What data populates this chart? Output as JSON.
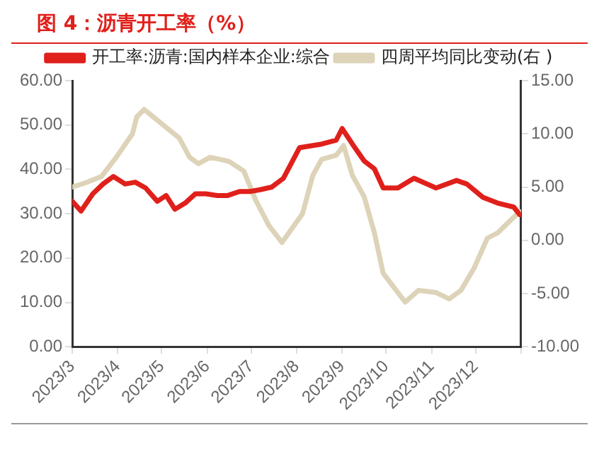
{
  "chart_data": {
    "type": "line",
    "title": "图 4：沥青开工率（%）",
    "series": [
      {
        "name": "开工率:沥青:国内样本企业:综合",
        "color": "#e0201b",
        "x": [
          "2023-03-01",
          "2023-03-07",
          "2023-03-15",
          "2023-03-22",
          "2023-03-29",
          "2023-04-06",
          "2023-04-13",
          "2023-04-20",
          "2023-04-28",
          "2023-05-04",
          "2023-05-10",
          "2023-05-17",
          "2023-05-24",
          "2023-05-31",
          "2023-06-08",
          "2023-06-15",
          "2023-06-23",
          "2023-06-30",
          "2023-07-07",
          "2023-07-15",
          "2023-07-23",
          "2023-08-03",
          "2023-08-18",
          "2023-08-28",
          "2023-09-01",
          "2023-09-08",
          "2023-09-16",
          "2023-09-23",
          "2023-09-29",
          "2023-10-09",
          "2023-10-20",
          "2023-11-04",
          "2023-11-18",
          "2023-11-25",
          "2023-12-06",
          "2023-12-16",
          "2023-12-27",
          "2023-12-31"
        ],
        "values": [
          32.8,
          30.6,
          34.5,
          36.7,
          38.4,
          36.7,
          37.1,
          35.8,
          32.8,
          34.1,
          31,
          32.4,
          34.5,
          34.5,
          34.1,
          34.1,
          35,
          35,
          35.4,
          36,
          38,
          44.9,
          45.7,
          46.6,
          49.2,
          45.7,
          41.9,
          40.1,
          35.8,
          35.8,
          38,
          35.8,
          37.5,
          36.7,
          33.7,
          32.4,
          31.5,
          29.8
        ]
      },
      {
        "name": "四周平均同比变动(右 )",
        "color": "#ddd3b8",
        "axis": "y2",
        "x": [
          "2023-03-01",
          "2023-03-10",
          "2023-03-21",
          "2023-03-31",
          "2023-04-11",
          "2023-04-14",
          "2023-04-19",
          "2023-04-27",
          "2023-05-05",
          "2023-05-13",
          "2023-05-20",
          "2023-05-26",
          "2023-06-03",
          "2023-06-10",
          "2023-06-16",
          "2023-06-26",
          "2023-07-04",
          "2023-07-13",
          "2023-07-22",
          "2023-08-05",
          "2023-08-12",
          "2023-08-18",
          "2023-08-28",
          "2023-09-02",
          "2023-09-08",
          "2023-09-16",
          "2023-09-23",
          "2023-09-29",
          "2023-10-09",
          "2023-10-14",
          "2023-10-23",
          "2023-11-04",
          "2023-11-13",
          "2023-11-21",
          "2023-11-30",
          "2023-12-09",
          "2023-12-16",
          "2023-12-31"
        ],
        "values": [
          5.0,
          5.4,
          6.0,
          7.8,
          10.0,
          11.6,
          12.3,
          11.4,
          10.5,
          9.6,
          7.8,
          7.2,
          7.8,
          7.6,
          7.4,
          6.5,
          3.8,
          1.4,
          -0.2,
          2.5,
          6.1,
          7.6,
          8.0,
          8.9,
          6.1,
          4.1,
          0.7,
          -3.1,
          -4.9,
          -5.8,
          -4.7,
          -4.9,
          -5.5,
          -4.7,
          -2.6,
          0.2,
          0.7,
          2.7
        ]
      }
    ],
    "xlim": [
      "2023-03-01",
      "2024-01-01"
    ],
    "xticks": [
      {
        "value": "2023-03-01",
        "label": "2023/3"
      },
      {
        "value": "2023-04-01",
        "label": "2023/4"
      },
      {
        "value": "2023-05-01",
        "label": "2023/5"
      },
      {
        "value": "2023-06-01",
        "label": "2023/6"
      },
      {
        "value": "2023-07-01",
        "label": "2023/7"
      },
      {
        "value": "2023-08-01",
        "label": "2023/8"
      },
      {
        "value": "2023-09-01",
        "label": "2023/9"
      },
      {
        "value": "2023-10-01",
        "label": "2023/10"
      },
      {
        "value": "2023-11-01",
        "label": "2023/11"
      },
      {
        "value": "2023-12-01",
        "label": "2023/12"
      },
      {
        "value": "2024-01-01",
        "label": null
      }
    ],
    "ylim": [
      0,
      60
    ],
    "yticks": [
      {
        "value": 0,
        "label": "0.00"
      },
      {
        "value": 10,
        "label": "10.00"
      },
      {
        "value": 20,
        "label": "20.00"
      },
      {
        "value": 30,
        "label": "30.00"
      },
      {
        "value": 40,
        "label": "40.00"
      },
      {
        "value": 50,
        "label": "50.00"
      },
      {
        "value": 60,
        "label": "60.00"
      }
    ],
    "y2lim": [
      -10,
      15
    ],
    "y2ticks": [
      {
        "value": -10,
        "label": "-10.00"
      },
      {
        "value": -5,
        "label": "-5.00"
      },
      {
        "value": 0,
        "label": "0.00"
      },
      {
        "value": 5,
        "label": "5.00"
      },
      {
        "value": 10,
        "label": "10.00"
      },
      {
        "value": 15,
        "label": "15.00"
      }
    ],
    "grid": false,
    "legend": "top",
    "marker": "none",
    "line_style": "solid"
  }
}
